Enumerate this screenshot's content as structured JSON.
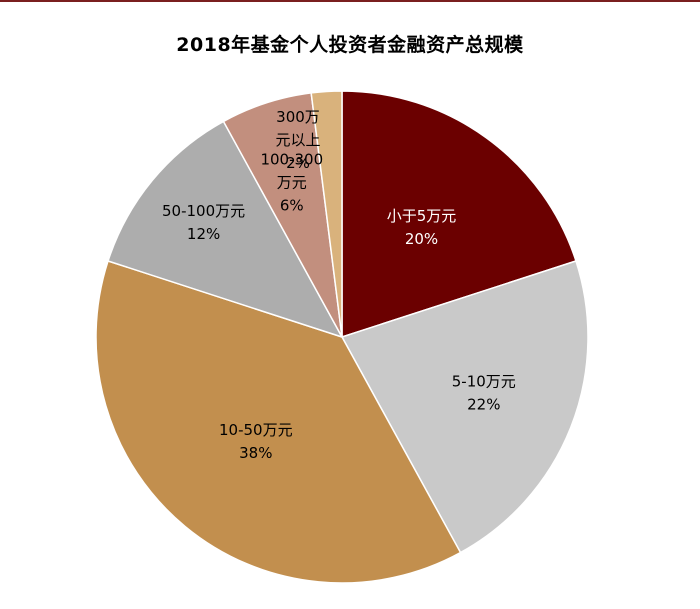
{
  "chart_data": {
    "type": "pie",
    "title": "2018年基金个人投资者金融资产总规模",
    "slices": [
      {
        "lines": [
          "小于5万元"
        ],
        "label": "小于5万元",
        "value": 20,
        "value_label": "20%",
        "color": "#6b0000",
        "text_color": "#ffffff"
      },
      {
        "lines": [
          "5-10万元"
        ],
        "label": "5-10万元",
        "value": 22,
        "value_label": "22%",
        "color": "#c9c9c9",
        "text_color": "#000000"
      },
      {
        "lines": [
          "10-50万元"
        ],
        "label": "10-50万元",
        "value": 38,
        "value_label": "38%",
        "color": "#c28f4e",
        "text_color": "#000000"
      },
      {
        "lines": [
          "50-100万元"
        ],
        "label": "50-100万元",
        "value": 12,
        "value_label": "12%",
        "color": "#adadad",
        "text_color": "#000000"
      },
      {
        "lines": [
          "100-300",
          "万元"
        ],
        "label": "100-300万元",
        "value": 6,
        "value_label": "6%",
        "color": "#c28f7e",
        "text_color": "#000000"
      },
      {
        "lines": [
          "300万",
          "元以上"
        ],
        "label": "300万元以上",
        "value": 2,
        "value_label": "2%",
        "color": "#d9b27c",
        "text_color": "#000000"
      }
    ]
  }
}
